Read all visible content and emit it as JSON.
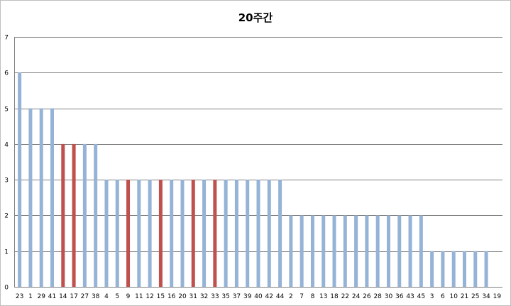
{
  "chart_data": {
    "type": "bar",
    "title": "20주간",
    "xlabel": "",
    "ylabel": "",
    "ylim": [
      0,
      7
    ],
    "yticks": [
      0,
      1,
      2,
      3,
      4,
      5,
      6,
      7
    ],
    "grid": true,
    "legend": "none",
    "categories": [
      "23",
      "1",
      "29",
      "41",
      "14",
      "17",
      "27",
      "38",
      "4",
      "5",
      "9",
      "11",
      "12",
      "15",
      "16",
      "20",
      "31",
      "32",
      "33",
      "35",
      "37",
      "39",
      "40",
      "42",
      "44",
      "2",
      "7",
      "8",
      "13",
      "18",
      "22",
      "24",
      "26",
      "28",
      "30",
      "36",
      "43",
      "45",
      "3",
      "6",
      "10",
      "21",
      "25",
      "34",
      "19"
    ],
    "values": [
      6,
      5,
      5,
      5,
      4,
      4,
      4,
      4,
      3,
      3,
      3,
      3,
      3,
      3,
      3,
      3,
      3,
      3,
      3,
      3,
      3,
      3,
      3,
      3,
      3,
      2,
      2,
      2,
      2,
      2,
      2,
      2,
      2,
      2,
      2,
      2,
      2,
      2,
      1,
      1,
      1,
      1,
      1,
      1,
      0
    ],
    "highlighted": [
      "14",
      "17",
      "9",
      "15",
      "31",
      "33"
    ],
    "colors": {
      "default": "#95b3d7",
      "highlight": "#c0504d",
      "grid": "#808080",
      "axis": "#808080"
    }
  }
}
